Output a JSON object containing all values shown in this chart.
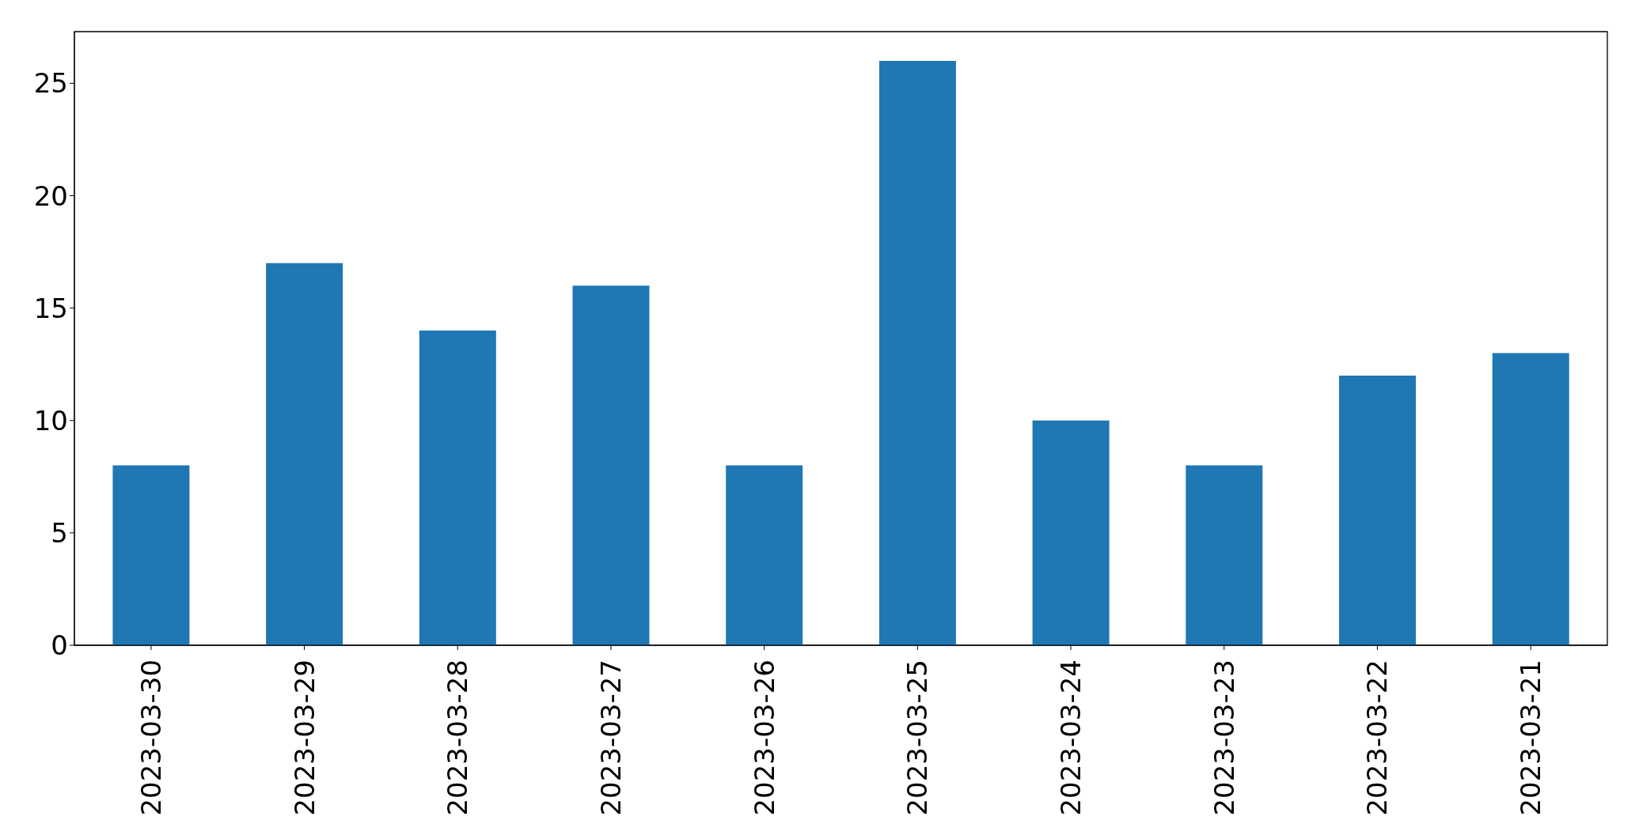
{
  "chart_data": {
    "type": "bar",
    "categories": [
      "2023-03-30",
      "2023-03-29",
      "2023-03-28",
      "2023-03-27",
      "2023-03-26",
      "2023-03-25",
      "2023-03-24",
      "2023-03-23",
      "2023-03-22",
      "2023-03-21"
    ],
    "values": [
      8,
      17,
      14,
      16,
      8,
      26,
      10,
      8,
      12,
      13
    ],
    "color": "#1f77b4",
    "ylim": [
      0,
      27.3
    ],
    "yticks": [
      0,
      5,
      10,
      15,
      20,
      25
    ],
    "grid": false,
    "legend": false
  }
}
